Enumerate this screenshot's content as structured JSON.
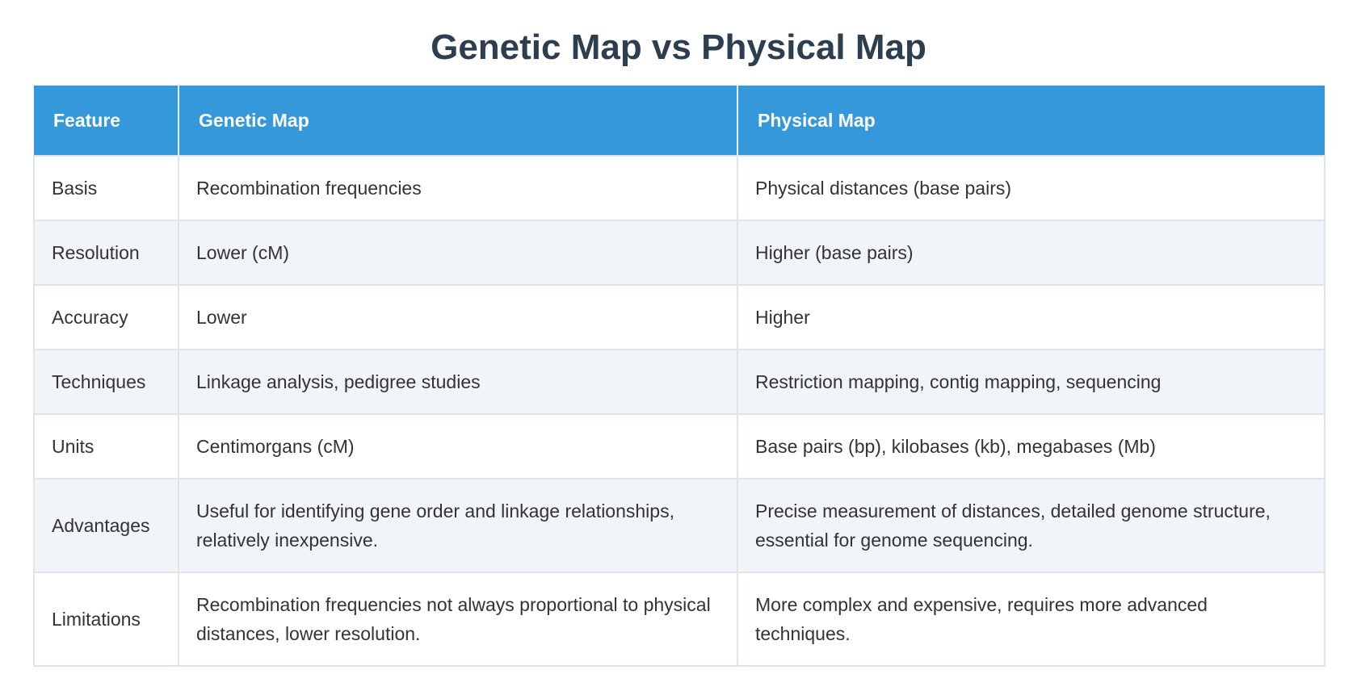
{
  "title": "Genetic Map vs Physical Map",
  "table": {
    "headers": [
      "Feature",
      "Genetic Map",
      "Physical Map"
    ],
    "rows": [
      [
        "Basis",
        "Recombination frequencies",
        "Physical distances (base pairs)"
      ],
      [
        "Resolution",
        "Lower (cM)",
        "Higher (base pairs)"
      ],
      [
        "Accuracy",
        "Lower",
        "Higher"
      ],
      [
        "Techniques",
        "Linkage analysis, pedigree studies",
        "Restriction mapping, contig mapping, sequencing"
      ],
      [
        "Units",
        "Centimorgans (cM)",
        "Base pairs (bp), kilobases (kb), megabases (Mb)"
      ],
      [
        "Advantages",
        "Useful for identifying gene order and linkage relationships, relatively inexpensive.",
        "Precise measurement of distances, detailed genome structure, essential for genome sequencing."
      ],
      [
        "Limitations",
        "Recombination frequencies not always proportional to physical distances, lower resolution.",
        "More complex and expensive, requires more advanced techniques."
      ]
    ]
  }
}
